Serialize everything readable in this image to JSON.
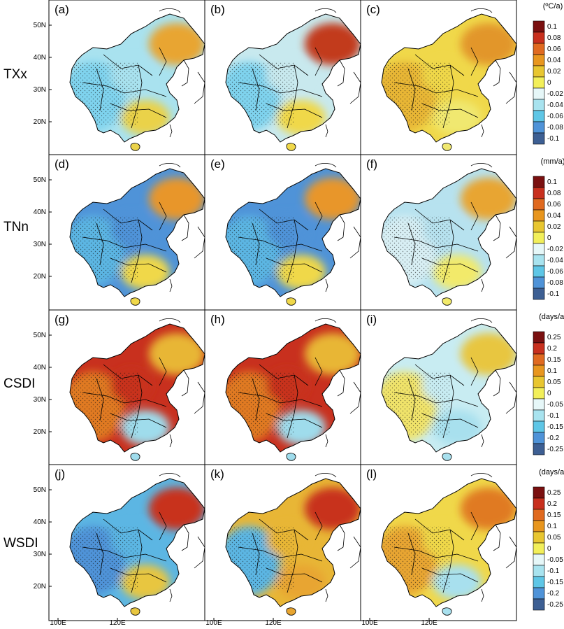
{
  "rows": [
    {
      "label": "TXx",
      "unit": "(ºC/a)",
      "panels": [
        {
          "label": "(a)"
        },
        {
          "label": "(b)"
        },
        {
          "label": "(c)"
        }
      ],
      "ticks": [
        "0.1",
        "0.08",
        "0.06",
        "0.04",
        "0.02",
        "0",
        "-0.02",
        "-0.04",
        "-0.06",
        "-0.08",
        "-0.1"
      ]
    },
    {
      "label": "TNn",
      "unit": "(mm/a)",
      "panels": [
        {
          "label": "(d)"
        },
        {
          "label": "(e)"
        },
        {
          "label": "(f)"
        }
      ],
      "ticks": [
        "0.1",
        "0.08",
        "0.06",
        "0.04",
        "0.02",
        "0",
        "-0.02",
        "-0.04",
        "-0.06",
        "-0.08",
        "-0.1"
      ]
    },
    {
      "label": "CSDI",
      "unit": "(days/a)",
      "panels": [
        {
          "label": "(g)"
        },
        {
          "label": "(h)"
        },
        {
          "label": "(i)"
        }
      ],
      "ticks": [
        "0.25",
        "0.2",
        "0.15",
        "0.1",
        "0.05",
        "0",
        "-0.05",
        "-0.1",
        "-0.15",
        "-0.2",
        "-0.25"
      ]
    },
    {
      "label": "WSDI",
      "unit": "(days/a)",
      "panels": [
        {
          "label": "(j)"
        },
        {
          "label": "(k)"
        },
        {
          "label": "(l)"
        }
      ],
      "ticks": [
        "0.25",
        "0.2",
        "0.15",
        "0.1",
        "0.05",
        "0",
        "-0.05",
        "-0.1",
        "-0.15",
        "-0.2",
        "-0.25"
      ]
    }
  ],
  "lat_labels": [
    "50N",
    "40N",
    "30N",
    "20N"
  ],
  "lon_labels": [
    "100E",
    "120E"
  ],
  "colorbar_colors": [
    "#7a1010",
    "#c8301e",
    "#e06a20",
    "#e8961e",
    "#e8c630",
    "#f2ef5a",
    "#e6f7f8",
    "#a8e3ef",
    "#5ec6e6",
    "#4f93d8",
    "#3d5f93"
  ]
}
